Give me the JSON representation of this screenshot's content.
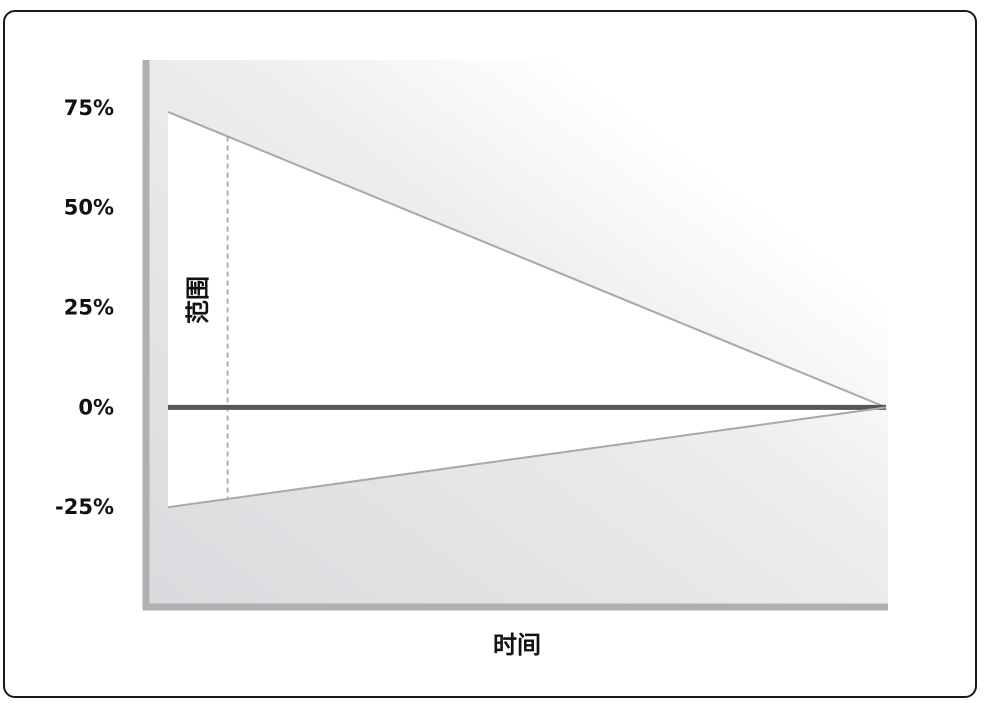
{
  "chart_data": {
    "type": "area",
    "xlabel": "时间",
    "ylabel": "",
    "y_tick_labels": [
      "75%",
      "50%",
      "25%",
      "0%",
      "-25%"
    ],
    "y_ticks": [
      75,
      50,
      25,
      0,
      -25
    ],
    "ylim": [
      -50,
      87
    ],
    "xlim": [
      0,
      1
    ],
    "annotation": "范围",
    "series": [
      {
        "values": [
          [
            0,
            74
          ],
          [
            1,
            0
          ]
        ]
      },
      {
        "values": [
          [
            0,
            0
          ],
          [
            1,
            0
          ]
        ]
      },
      {
        "values": [
          [
            0,
            -25
          ],
          [
            1,
            0
          ]
        ]
      }
    ],
    "range_marker": {
      "x": 0.083,
      "from": -22.9,
      "to": 67.8
    },
    "grid": false,
    "colors": {
      "bound_line": "#a8a8a8",
      "zero_line": "#555555",
      "axis": "#b0b0b0",
      "background_shade": "#e2e3e5",
      "cone_fill": "#ffffff",
      "frame": "#1a1a1a",
      "text": "#111111"
    }
  }
}
